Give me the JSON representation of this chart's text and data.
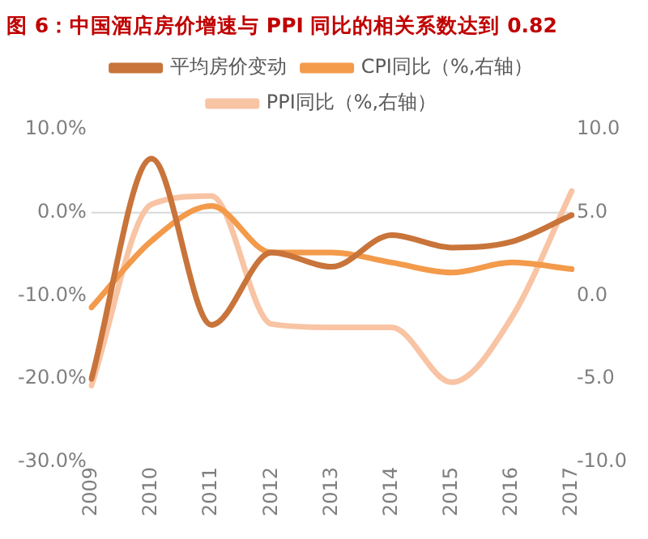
{
  "chart_data": {
    "type": "line",
    "title": "图 6：中国酒店房价增速与 PPI 同比的相关系数达到 0.82",
    "categories": [
      "2009",
      "2010",
      "2011",
      "2012",
      "2013",
      "2014",
      "2015",
      "2016",
      "2017"
    ],
    "series": [
      {
        "name": "平均房价变动",
        "color": "#c8743a",
        "values": [
          -20,
          6.5,
          -13.5,
          -4.8,
          -6.5,
          -2.7,
          -4.2,
          -3.5,
          -0.3
        ]
      },
      {
        "name": "CPI同比（%,右轴）",
        "color": "#f39a4b",
        "axis": "y2",
        "values": [
          -0.7,
          3.3,
          5.4,
          2.6,
          2.6,
          2.0,
          1.4,
          2.0,
          1.6
        ]
      },
      {
        "name": "PPI同比（%,右轴）",
        "color": "#f8c4a4",
        "axis": "y2",
        "values": [
          -5.4,
          5.5,
          6.0,
          -1.7,
          -1.9,
          -1.9,
          -5.2,
          -1.3,
          6.3
        ]
      }
    ],
    "ylim": [
      -30,
      10
    ],
    "yticks": [
      {
        "value": -30,
        "label": "-30.0%"
      },
      {
        "value": -20,
        "label": "-20.0%"
      },
      {
        "value": -10,
        "label": "-10.0%"
      },
      {
        "value": 0,
        "label": "0.0%"
      },
      {
        "value": 10,
        "label": "10.0%"
      }
    ],
    "y2lim": [
      -10,
      10
    ],
    "y2ticks": [
      {
        "value": -10,
        "label": "-10.0"
      },
      {
        "value": -5,
        "label": "-5.0"
      },
      {
        "value": 0,
        "label": "0.0"
      },
      {
        "value": 5,
        "label": "5.0"
      },
      {
        "value": 10,
        "label": "10.0"
      }
    ],
    "ref_lines": [
      {
        "axis": "y",
        "value": 0,
        "color": "#d9d9d9"
      }
    ],
    "grid": false,
    "legend": "top",
    "marker": "none",
    "line_style": "solid"
  }
}
